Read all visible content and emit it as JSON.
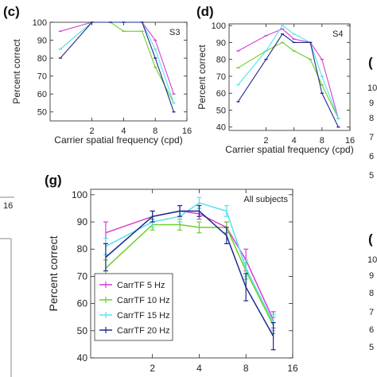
{
  "colors": {
    "5": "#d53fd0",
    "10": "#6ad02c",
    "15": "#59e0ef",
    "20": "#1d2b8c"
  },
  "panels": {
    "c": {
      "tag": "(c)",
      "subject": "S3"
    },
    "d": {
      "tag": "(d)",
      "subject": "S4"
    },
    "g": {
      "tag": "(g)",
      "subject": "All subjects"
    },
    "edge_right_1": {
      "tag": "(",
      "ticks": [
        "10",
        "9",
        "8",
        "7",
        "6",
        "5"
      ]
    },
    "edge_right_2": {
      "tag": "(",
      "ticks": [
        "10",
        "9",
        "8",
        "7",
        "6",
        "5"
      ]
    },
    "edge_left": {
      "top_tick": "16"
    }
  },
  "axes": {
    "xlabel": "Carrier spatial frequency (cpd)",
    "ylabel": "Percent correct"
  },
  "legend": [
    {
      "label": "CarrTF 5 Hz",
      "key": "5"
    },
    {
      "label": "CarrTF 10 Hz",
      "key": "10"
    },
    {
      "label": "CarrTF 15 Hz",
      "key": "15"
    },
    {
      "label": "CarrTF 20 Hz",
      "key": "20"
    }
  ],
  "chart_data": [
    {
      "type": "line",
      "title": "",
      "subject": "S3",
      "xlabel": "Carrier spatial frequency (cpd)",
      "ylabel": "Percent correct",
      "x": [
        1,
        2,
        3,
        4,
        6,
        8,
        12
      ],
      "xscale": "log2",
      "xticks": [
        2,
        4,
        8,
        16
      ],
      "xlim": [
        0.8,
        16
      ],
      "yticks": [
        50,
        60,
        70,
        80,
        90,
        100
      ],
      "ylim": [
        45,
        100
      ],
      "series": [
        {
          "name": "CarrTF 5 Hz",
          "key": "5",
          "values": [
            95,
            100,
            100,
            100,
            100,
            90,
            60
          ]
        },
        {
          "name": "CarrTF 10 Hz",
          "key": "10",
          "values": [
            85,
            100,
            100,
            95,
            95,
            75,
            55
          ]
        },
        {
          "name": "CarrTF 15 Hz",
          "key": "15",
          "values": [
            85,
            100,
            100,
            100,
            100,
            85,
            55
          ]
        },
        {
          "name": "CarrTF 20 Hz",
          "key": "20",
          "values": [
            80,
            100,
            100,
            100,
            100,
            80,
            50
          ]
        }
      ]
    },
    {
      "type": "line",
      "title": "",
      "subject": "S4",
      "xlabel": "Carrier spatial frequency (cpd)",
      "ylabel": "Percent correct",
      "x": [
        1,
        2,
        3,
        4,
        6,
        8,
        12
      ],
      "xscale": "log2",
      "xticks": [
        2,
        4,
        8,
        16
      ],
      "xlim": [
        0.8,
        16
      ],
      "yticks": [
        40,
        50,
        60,
        70,
        80,
        90,
        100
      ],
      "ylim": [
        38,
        101
      ],
      "series": [
        {
          "name": "CarrTF 5 Hz",
          "key": "5",
          "values": [
            85,
            94,
            98,
            92,
            90,
            80,
            45
          ]
        },
        {
          "name": "CarrTF 10 Hz",
          "key": "10",
          "values": [
            75,
            85,
            90,
            85,
            80,
            65,
            45
          ]
        },
        {
          "name": "CarrTF 15 Hz",
          "key": "15",
          "values": [
            65,
            85,
            100,
            95,
            90,
            70,
            45
          ]
        },
        {
          "name": "CarrTF 20 Hz",
          "key": "20",
          "values": [
            55,
            80,
            95,
            90,
            90,
            60,
            40
          ]
        }
      ]
    },
    {
      "type": "line",
      "title": "",
      "subject": "All subjects",
      "xlabel": "Carrier spatial frequency (cpd)",
      "ylabel": "Percent correct",
      "x": [
        1,
        2,
        3,
        4,
        6,
        8,
        12
      ],
      "xscale": "log2",
      "xticks": [
        2,
        4,
        8,
        16
      ],
      "xlim": [
        0.8,
        16
      ],
      "yticks": [
        40,
        50,
        60,
        70,
        80,
        90,
        100
      ],
      "ylim": [
        40,
        102
      ],
      "errorbars": true,
      "series": [
        {
          "name": "CarrTF 5 Hz",
          "key": "5",
          "values": [
            86,
            92,
            94,
            93,
            88,
            76,
            54
          ],
          "err": [
            4,
            2,
            2,
            2,
            2,
            4,
            3
          ]
        },
        {
          "name": "CarrTF 10 Hz",
          "key": "10",
          "values": [
            73,
            89,
            89,
            88,
            88,
            72,
            52
          ],
          "err": [
            3,
            2,
            2,
            2,
            2,
            3,
            3
          ]
        },
        {
          "name": "CarrTF 15 Hz",
          "key": "15",
          "values": [
            81,
            90,
            92,
            97,
            94,
            73,
            53
          ],
          "err": [
            3,
            2,
            2,
            2,
            2,
            3,
            3
          ]
        },
        {
          "name": "CarrTF 20 Hz",
          "key": "20",
          "values": [
            77,
            92,
            94,
            94,
            85,
            66,
            48
          ],
          "err": [
            5,
            2,
            2,
            2,
            3,
            5,
            5
          ]
        }
      ]
    }
  ]
}
